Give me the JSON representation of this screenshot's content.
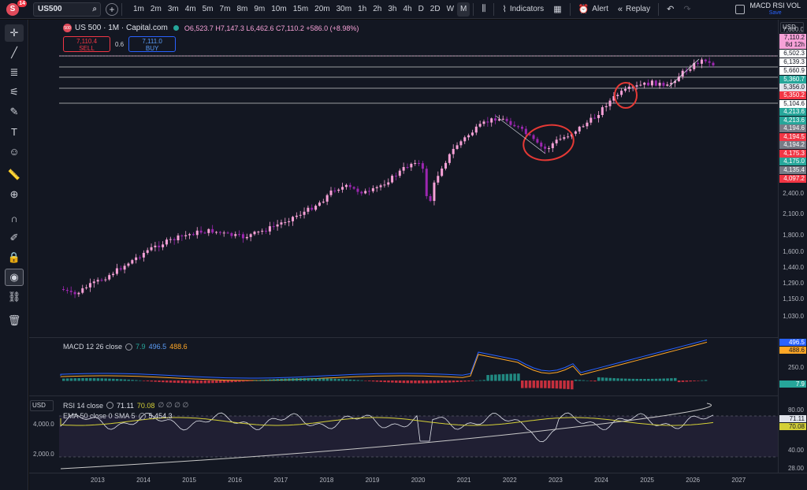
{
  "topbar": {
    "badge_count": "14",
    "logo_letter": "S",
    "symbol": "US500",
    "intervals": [
      "1m",
      "2m",
      "3m",
      "4m",
      "5m",
      "7m",
      "8m",
      "9m",
      "10m",
      "15m",
      "20m",
      "30m",
      "1h",
      "2h",
      "3h",
      "4h",
      "D",
      "2D",
      "W",
      "M"
    ],
    "active_interval": "M",
    "indicators_label": "Indicators",
    "alert_label": "Alert",
    "replay_label": "Replay",
    "layout_name": "MACD RSI VOL",
    "layout_save": "Save"
  },
  "header": {
    "symbol_icon_text": "500",
    "title": "US 500 · 1M · Capital.com",
    "open": "O6,523.7",
    "high": "H7,147.3",
    "low": "L6,462.6",
    "close": "C7,110.2",
    "change": "+586.0 (+8.98%)"
  },
  "trade": {
    "sell_price": "7,110.4",
    "sell_label": "SELL",
    "spread": "0.6",
    "buy_price": "7,111.0",
    "buy_label": "BUY"
  },
  "currency": "USD",
  "main_axis": {
    "labels": [
      "7,600.0",
      "7,110.2",
      "8d 12h",
      "6,502.3",
      "6,139.3",
      "5,660.9",
      "5,360.7",
      "5,356.0",
      "5,350.2",
      "5,104.6",
      "4,213.6",
      "4,213.6",
      "4,194.6",
      "4,194.5",
      "4,194.2",
      "4,175.3",
      "4,175.0",
      "4,135.4",
      "4,097.2",
      "2,400.0",
      "2,100.0",
      "1,800.0",
      "1,600.0",
      "1,440.0",
      "1,290.0",
      "1,150.0",
      "1,030.0"
    ],
    "tag_colors": [
      "#131722",
      "#f7a1d7",
      "#f7a1d7",
      "#ffffff",
      "#ffffff",
      "#ffffff",
      "#26a69a",
      "#e0e3eb",
      "#f23645",
      "#ffffff",
      "#26a69a",
      "#26a69a",
      "#787b86",
      "#f23645",
      "#787b86",
      "#f23645",
      "#26a69a",
      "#787b86",
      "#f23645"
    ]
  },
  "macd": {
    "label": "MACD 12 26 close",
    "v1": "7.9",
    "v2": "496.5",
    "v3": "488.6",
    "axis": [
      "496.5",
      "488.6",
      "250.0",
      "7.9"
    ]
  },
  "rsi": {
    "label": "RSI 14 close",
    "v1": "71.11",
    "v2": "70.08",
    "zeros": "∅ ∅ ∅ ∅",
    "ema_label": "EMA 50 close 0 SMA 5",
    "ema_val": "5,454.3",
    "left_axis": [
      "4,000.0",
      "2,000.0"
    ],
    "axis": [
      "80.00",
      "71.11",
      "70.08",
      "40.00",
      "28.00"
    ]
  },
  "xaxis": [
    "2013",
    "2014",
    "2015",
    "2016",
    "2017",
    "2018",
    "2019",
    "2020",
    "2021",
    "2022",
    "2023",
    "2024",
    "2025",
    "2026",
    "2027"
  ],
  "colors": {
    "up": "#f7a1d7",
    "down": "#9c27b0",
    "macd_line": "#2962ff",
    "signal_line": "#ffa726",
    "hist_pos": "#26a69a",
    "hist_neg": "#f23645",
    "rsi_line": "#e0e3eb",
    "rsi_ma": "#d4d037",
    "annotation": "#e53935"
  }
}
